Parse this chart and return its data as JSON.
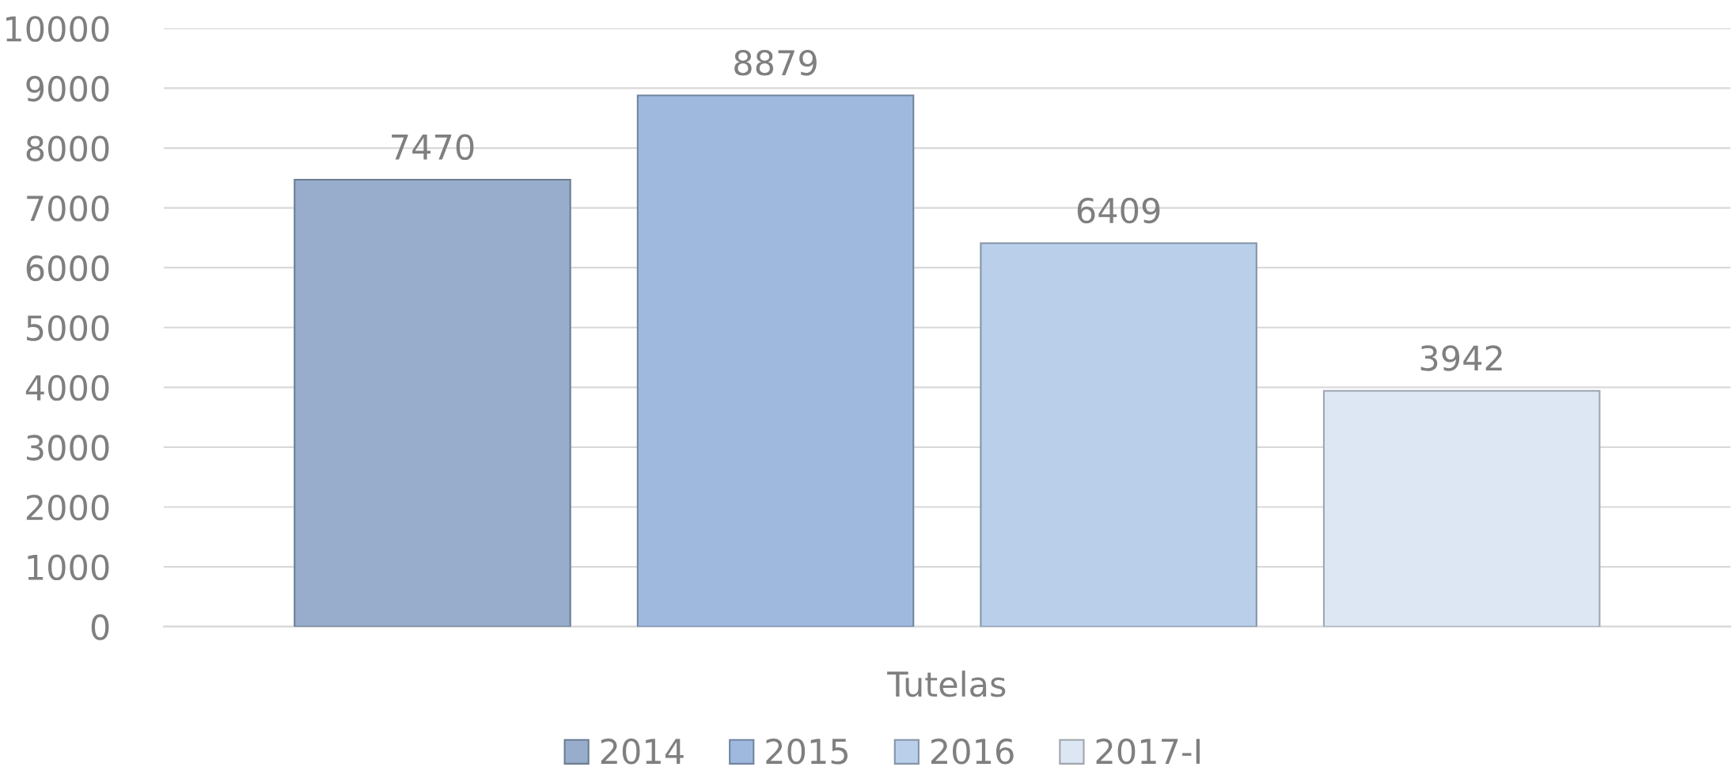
{
  "chart_data": {
    "type": "bar",
    "categories": [
      "Tutelas"
    ],
    "series": [
      {
        "name": "2014",
        "color": "#97adcb",
        "values": [
          7470
        ]
      },
      {
        "name": "2015",
        "color": "#9fb9de",
        "values": [
          8879
        ]
      },
      {
        "name": "2016",
        "color": "#b9cfea",
        "values": [
          6409
        ]
      },
      {
        "name": "2017-I",
        "color": "#dde6f3",
        "values": [
          3942
        ]
      }
    ],
    "ylim": [
      0,
      10000
    ],
    "yticks": [
      0,
      1000,
      2000,
      3000,
      4000,
      5000,
      6000,
      7000,
      8000,
      9000,
      10000
    ],
    "grid": "y",
    "legend": "bottom",
    "data_labels": true
  }
}
